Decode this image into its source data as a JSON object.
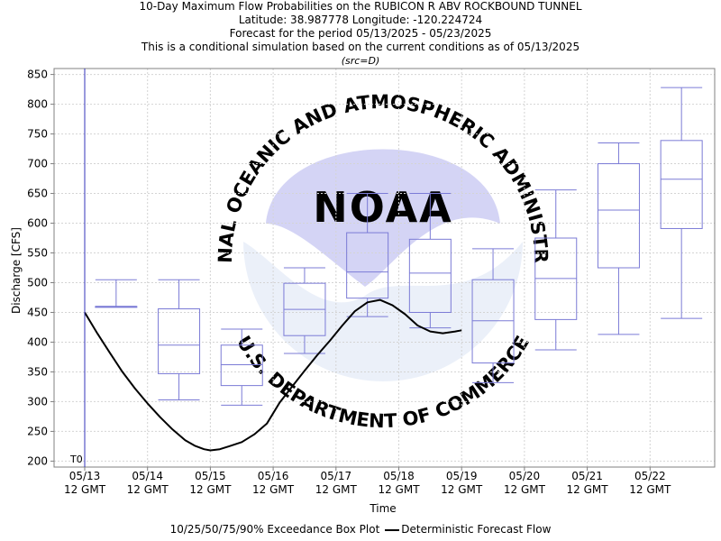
{
  "titles": {
    "line1": "10-Day Maximum Flow Probabilities on the RUBICON R ABV ROCKBOUND TUNNEL",
    "line2": "Latitude: 38.987778 Longitude: -120.224724",
    "line3": "Forecast for the period 05/13/2025 - 05/23/2025",
    "line4": "This is a conditional simulation based on the current conditions as of 05/13/2025",
    "line5": "(src=D)"
  },
  "watermark": {
    "logo_text": "NOAA",
    "ring_top": "NATIONAL OCEANIC AND ATMOSPHERIC ADMINISTRATION",
    "ring_bottom": "U.S. DEPARTMENT OF COMMERCE"
  },
  "colors": {
    "box": "#7b7bd6",
    "deterministic": "#000000",
    "t0_line": "#3333bb",
    "grid": "#d4d4d4",
    "watermark": "#dcdcf6"
  },
  "legend": {
    "box_label": "10/25/50/75/90% Exceedance Box Plot",
    "line_label": "Deterministic Forecast Flow"
  },
  "chart_data": {
    "type": "box",
    "xlabel": "Time",
    "ylabel": "Discharge [CFS]",
    "ylim": [
      190,
      860
    ],
    "yticks": [
      200,
      250,
      300,
      350,
      400,
      450,
      500,
      550,
      600,
      650,
      700,
      750,
      800,
      850
    ],
    "xticks": [
      {
        "line1": "05/13",
        "line2": "12 GMT"
      },
      {
        "line1": "05/14",
        "line2": "12 GMT"
      },
      {
        "line1": "05/15",
        "line2": "12 GMT"
      },
      {
        "line1": "05/16",
        "line2": "12 GMT"
      },
      {
        "line1": "05/17",
        "line2": "12 GMT"
      },
      {
        "line1": "05/18",
        "line2": "12 GMT"
      },
      {
        "line1": "05/19",
        "line2": "12 GMT"
      },
      {
        "line1": "05/20",
        "line2": "12 GMT"
      },
      {
        "line1": "05/21",
        "line2": "12 GMT"
      },
      {
        "line1": "05/22",
        "line2": "12 GMT"
      }
    ],
    "t0_label": "T0",
    "grid": true,
    "boxes": [
      {
        "day": "05/14",
        "p10": 460,
        "p25": 460,
        "p50": 460,
        "p75": 460,
        "p90": 505
      },
      {
        "day": "05/15",
        "p10": 303,
        "p25": 347,
        "p50": 395,
        "p75": 456,
        "p90": 505
      },
      {
        "day": "05/16",
        "p10": 294,
        "p25": 327,
        "p50": 362,
        "p75": 395,
        "p90": 422
      },
      {
        "day": "05/17",
        "p10": 381,
        "p25": 411,
        "p50": 455,
        "p75": 499,
        "p90": 525
      },
      {
        "day": "05/18",
        "p10": 443,
        "p25": 474,
        "p50": 518,
        "p75": 584,
        "p90": 650
      },
      {
        "day": "05/19",
        "p10": 424,
        "p25": 450,
        "p50": 516,
        "p75": 573,
        "p90": 650
      },
      {
        "day": "05/20",
        "p10": 332,
        "p25": 365,
        "p50": 436,
        "p75": 505,
        "p90": 557
      },
      {
        "day": "05/21",
        "p10": 387,
        "p25": 438,
        "p50": 507,
        "p75": 575,
        "p90": 656
      },
      {
        "day": "05/22",
        "p10": 413,
        "p25": 525,
        "p50": 622,
        "p75": 700,
        "p90": 735
      },
      {
        "day": "05/23",
        "p10": 440,
        "p25": 591,
        "p50": 674,
        "p75": 739,
        "p90": 828
      }
    ],
    "deterministic": {
      "x_days": [
        0.0,
        0.2,
        0.4,
        0.6,
        0.8,
        1.0,
        1.2,
        1.4,
        1.6,
        1.75,
        1.9,
        2.0,
        2.15,
        2.3,
        2.5,
        2.7,
        2.9,
        3.1,
        3.3,
        3.5,
        3.7,
        3.9,
        4.1,
        4.3,
        4.5,
        4.7,
        4.9,
        5.1,
        5.3,
        5.5,
        5.7,
        5.9,
        6.0
      ],
      "values": [
        450,
        415,
        382,
        350,
        322,
        297,
        274,
        253,
        235,
        226,
        220,
        218,
        220,
        225,
        232,
        245,
        263,
        298,
        325,
        352,
        378,
        402,
        428,
        452,
        467,
        471,
        462,
        447,
        428,
        418,
        415,
        418,
        420
      ]
    }
  }
}
